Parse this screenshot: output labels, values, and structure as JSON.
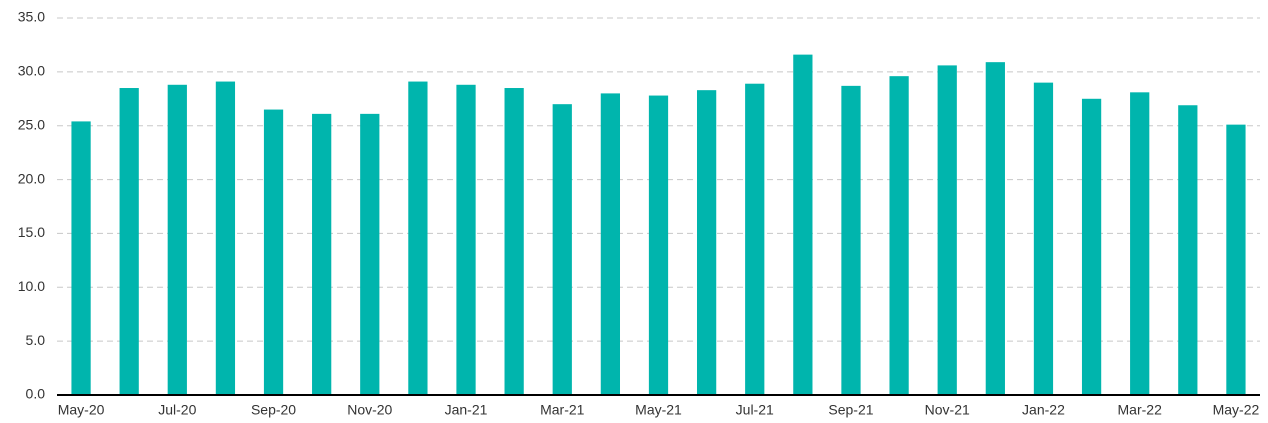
{
  "chart_data": {
    "type": "bar",
    "categories": [
      "May-20",
      null,
      "Jul-20",
      null,
      "Sep-20",
      null,
      "Nov-20",
      null,
      "Jan-21",
      null,
      "Mar-21",
      null,
      "May-21",
      null,
      "Jul-21",
      null,
      "Sep-21",
      null,
      "Nov-21",
      null,
      "Jan-22",
      null,
      "Mar-22",
      null,
      "May-22"
    ],
    "values": [
      25.4,
      28.5,
      28.8,
      29.1,
      26.5,
      26.1,
      26.1,
      29.1,
      28.8,
      28.5,
      27.0,
      28.0,
      27.8,
      28.3,
      28.9,
      31.6,
      28.7,
      29.6,
      30.6,
      30.9,
      29.0,
      27.5,
      28.1,
      26.9,
      25.1
    ],
    "color": "#00b5ad",
    "ylim": [
      0,
      35
    ],
    "yticks": [
      {
        "value": 0,
        "label": "0.0"
      },
      {
        "value": 5,
        "label": "5.0"
      },
      {
        "value": 10,
        "label": "10.0"
      },
      {
        "value": 15,
        "label": "15.0"
      },
      {
        "value": 20,
        "label": "20.0"
      },
      {
        "value": 25,
        "label": "25.0"
      },
      {
        "value": 30,
        "label": "30.0"
      },
      {
        "value": 35,
        "label": "35.0"
      }
    ],
    "grid": true
  }
}
